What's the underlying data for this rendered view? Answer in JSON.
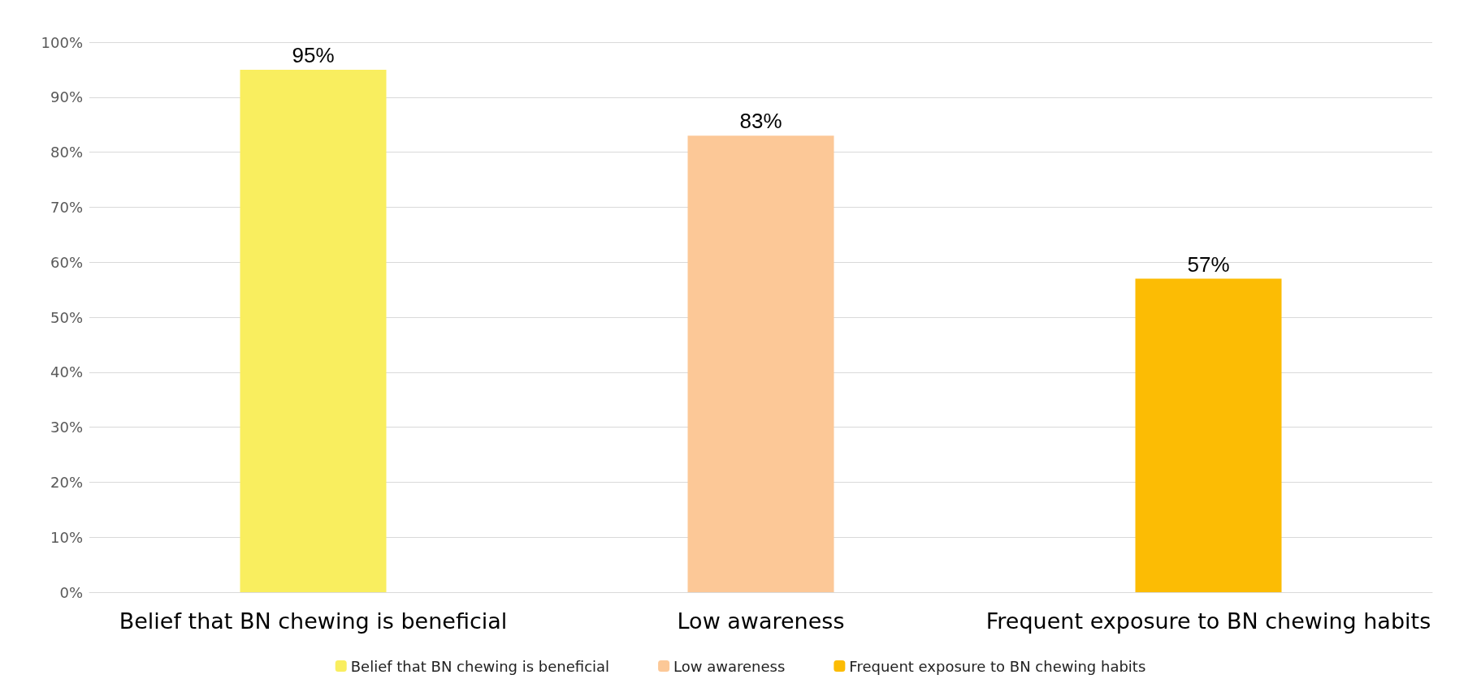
{
  "chart_data": {
    "type": "bar",
    "categories": [
      "Belief that BN chewing is beneficial",
      "Low awareness",
      "Frequent exposure to BN chewing habits"
    ],
    "series": [
      {
        "name": "Belief that BN chewing is beneficial",
        "color": "#f9ee5f",
        "values": [
          95,
          null,
          null
        ],
        "value_labels": [
          "95%",
          null,
          null
        ]
      },
      {
        "name": "Low awareness",
        "color": "#fcc897",
        "values": [
          null,
          83,
          null
        ],
        "value_labels": [
          null,
          "83%",
          null
        ]
      },
      {
        "name": "Frequent exposure to BN chewing habits",
        "color": "#fcbc04",
        "values": [
          null,
          null,
          57
        ],
        "value_labels": [
          null,
          null,
          "57%"
        ]
      }
    ],
    "ylim": [
      0,
      100
    ],
    "yticks": [
      {
        "value": 0,
        "label": "0%"
      },
      {
        "value": 10,
        "label": "10%"
      },
      {
        "value": 20,
        "label": "20%"
      },
      {
        "value": 30,
        "label": "30%"
      },
      {
        "value": 40,
        "label": "40%"
      },
      {
        "value": 50,
        "label": "50%"
      },
      {
        "value": 60,
        "label": "60%"
      },
      {
        "value": 70,
        "label": "70%"
      },
      {
        "value": 80,
        "label": "80%"
      },
      {
        "value": 90,
        "label": "90%"
      },
      {
        "value": 100,
        "label": "100%"
      }
    ],
    "grid": "y",
    "legend": "bottom"
  }
}
